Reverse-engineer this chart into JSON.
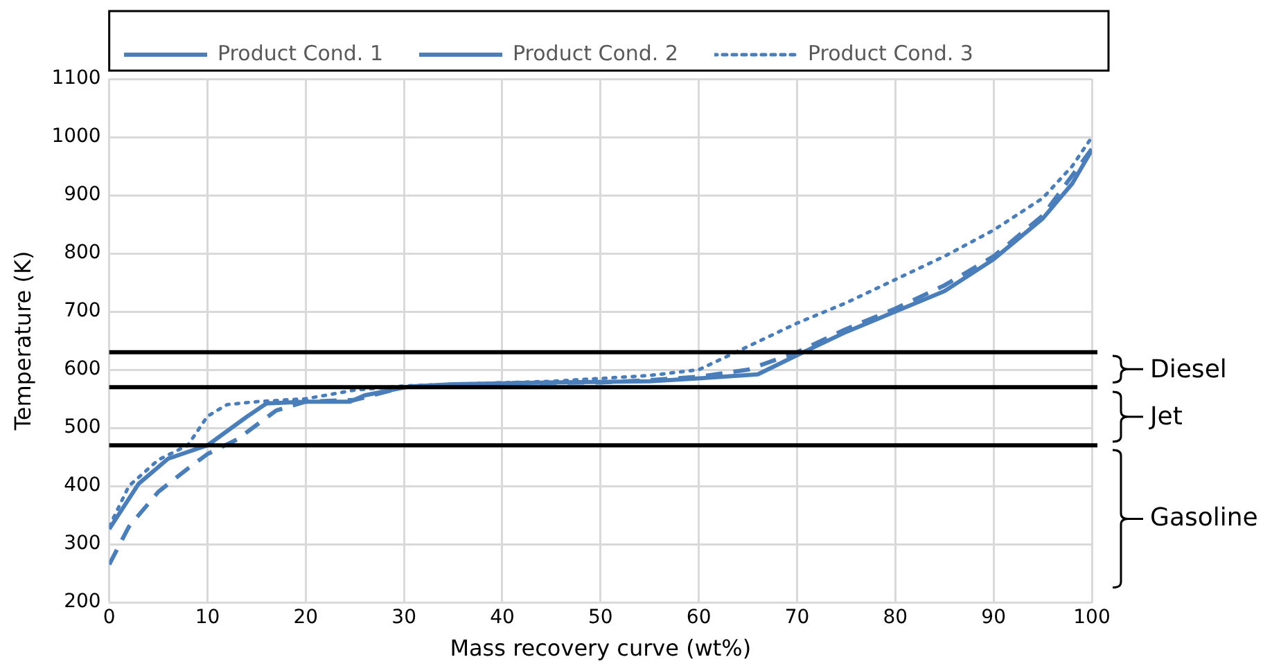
{
  "chart_data": {
    "type": "line",
    "xlabel": "Mass recovery curve (wt%)",
    "ylabel": "Temperature (K)",
    "xlim": [
      0,
      100
    ],
    "xticks": [
      0,
      10,
      20,
      30,
      40,
      50,
      60,
      70,
      80,
      90,
      100
    ],
    "ylim": [
      200,
      1100
    ],
    "yticks": [
      200,
      300,
      400,
      500,
      600,
      700,
      800,
      900,
      1000,
      1100
    ],
    "grid": true,
    "legend": "top",
    "marker": "none",
    "series": [
      {
        "name": "Product Cond. 1",
        "color": "#4a7ebb",
        "line_style": "solid",
        "x": [
          0,
          3,
          6,
          10,
          14,
          16,
          20,
          24.5,
          26,
          30.5,
          35,
          45,
          55,
          60,
          66,
          70,
          75,
          80,
          85,
          90,
          95,
          98,
          100
        ],
        "values": [
          326,
          404,
          447,
          470,
          519,
          542,
          545,
          545,
          556,
          571,
          575,
          578,
          580,
          585,
          592,
          625,
          665,
          700,
          735,
          790,
          860,
          920,
          978
        ]
      },
      {
        "name": "Product Cond. 2",
        "color": "#4a7ebb",
        "line_style": "dashed",
        "x": [
          0,
          2,
          5,
          8,
          10,
          13,
          17,
          20,
          25,
          30,
          40,
          50,
          55,
          60,
          65,
          70,
          75,
          80,
          85,
          90,
          95,
          100
        ],
        "values": [
          265,
          330,
          390,
          430,
          455,
          480,
          530,
          545,
          548,
          570,
          577,
          578,
          582,
          588,
          600,
          630,
          670,
          705,
          745,
          795,
          865,
          980
        ]
      },
      {
        "name": "Product Cond. 3",
        "color": "#4a7ebb",
        "line_style": "dotted",
        "x": [
          0,
          2,
          5,
          8,
          10,
          12,
          15,
          20,
          25,
          30,
          35,
          45,
          50,
          55,
          60,
          65,
          70,
          75,
          80,
          85,
          90,
          95,
          98,
          100
        ],
        "values": [
          330,
          400,
          445,
          470,
          520,
          540,
          545,
          550,
          565,
          572,
          575,
          580,
          585,
          590,
          600,
          640,
          680,
          715,
          755,
          795,
          840,
          895,
          950,
          1000
        ]
      }
    ],
    "ref_lines": [
      {
        "axis": "y",
        "value": 630,
        "color": "#000000"
      },
      {
        "axis": "y",
        "value": 570,
        "color": "#000000"
      },
      {
        "axis": "y",
        "value": 470,
        "color": "#000000"
      }
    ],
    "annotations": [
      "Diesel",
      "Jet",
      "Gasoline"
    ]
  }
}
